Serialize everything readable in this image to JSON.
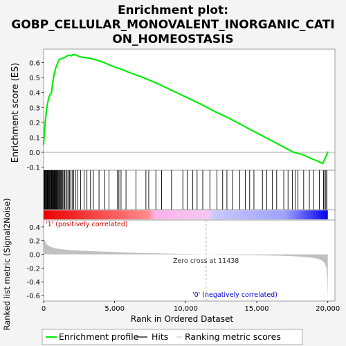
{
  "title": {
    "line1": "Enrichment plot:",
    "line2": "GOBP_CELLULAR_MONOVALENT_INORGANIC_CATI",
    "line3": "ON_HOMEOSTASIS"
  },
  "chart_data": [
    {
      "type": "line",
      "panel": "enrichment",
      "ylabel": "Enrichment score (ES)",
      "xlim": [
        0,
        20500
      ],
      "ylim": [
        -0.12,
        0.69
      ],
      "yticks": [
        "-0.1",
        "0.0",
        "0.1",
        "0.2",
        "0.3",
        "0.4",
        "0.5",
        "0.6"
      ],
      "grid": false,
      "series": [
        {
          "name": "Enrichment profile",
          "color": "#00ee00",
          "x": [
            0,
            60,
            120,
            200,
            280,
            380,
            480,
            560,
            620,
            680,
            760,
            840,
            920,
            1000,
            1100,
            1200,
            1350,
            1500,
            1650,
            1800,
            1950,
            2100,
            2300,
            2500,
            2800,
            3200,
            3600,
            4000,
            4500,
            5000,
            5500,
            6000,
            7000,
            8000,
            9000,
            10000,
            11000,
            12000,
            13000,
            14000,
            15000,
            16000,
            17000,
            17600,
            18200,
            18800,
            19300,
            19650,
            19760,
            19860,
            19950,
            20000
          ],
          "y": [
            0.05,
            0.14,
            0.21,
            0.28,
            0.33,
            0.37,
            0.39,
            0.4,
            0.45,
            0.49,
            0.53,
            0.56,
            0.58,
            0.6,
            0.62,
            0.625,
            0.63,
            0.635,
            0.645,
            0.65,
            0.645,
            0.655,
            0.65,
            0.64,
            0.635,
            0.63,
            0.62,
            0.61,
            0.59,
            0.57,
            0.555,
            0.535,
            0.5,
            0.46,
            0.415,
            0.37,
            0.325,
            0.275,
            0.23,
            0.18,
            0.13,
            0.08,
            0.03,
            0.0,
            -0.015,
            -0.04,
            -0.06,
            -0.075,
            -0.05,
            -0.03,
            -0.01,
            0.005
          ]
        }
      ]
    },
    {
      "type": "hits",
      "panel": "hits",
      "xlim": [
        0,
        20500
      ],
      "hit_positions": [
        20,
        60,
        90,
        130,
        170,
        210,
        250,
        290,
        330,
        370,
        410,
        450,
        500,
        540,
        580,
        620,
        660,
        700,
        740,
        780,
        820,
        860,
        900,
        940,
        980,
        1030,
        1080,
        1130,
        1180,
        1230,
        1290,
        1350,
        1420,
        1490,
        1570,
        1650,
        1730,
        1820,
        1910,
        2010,
        2120,
        2250,
        2400,
        2600,
        2850,
        3050,
        3300,
        3500,
        3900,
        4300,
        4600,
        5200,
        5300,
        5450,
        5800,
        6500,
        7200,
        7400,
        7900,
        8300,
        9000,
        9800,
        10100,
        10500,
        10800,
        11200,
        11700,
        12200,
        12600,
        12900,
        13300,
        13800,
        14200,
        14500,
        14800,
        15400,
        15700,
        16100,
        16400,
        16900,
        17200,
        17500,
        17700,
        17900,
        18300,
        18700,
        19000,
        19400,
        19700,
        19790,
        19860,
        19930
      ]
    },
    {
      "type": "area",
      "panel": "ranked_metric",
      "ylabel": "Ranked list metric (Signal2Noise)",
      "xlabel": "Rank in Ordered Dataset",
      "xlim": [
        0,
        20500
      ],
      "ylim": [
        -0.68,
        0.5
      ],
      "yticks": [
        "0.4",
        "0.2",
        "0.0",
        "-0.2",
        "-0.4",
        "-0.6"
      ],
      "xticks": [
        "0",
        "5,000",
        "10,000",
        "15,000",
        "20,000"
      ],
      "x": [
        0,
        50,
        150,
        300,
        500,
        800,
        1200,
        1800,
        2500,
        3500,
        5000,
        7000,
        9000,
        11438,
        13000,
        15000,
        17000,
        18000,
        18800,
        19300,
        19600,
        19800,
        19900,
        19960,
        20000
      ],
      "y": [
        0.3,
        0.22,
        0.17,
        0.13,
        0.11,
        0.09,
        0.075,
        0.063,
        0.055,
        0.045,
        0.035,
        0.02,
        0.01,
        0.0,
        -0.005,
        -0.012,
        -0.022,
        -0.032,
        -0.045,
        -0.065,
        -0.09,
        -0.13,
        -0.2,
        -0.38,
        -0.65
      ],
      "zero_cross_label": "Zero cross at 11438",
      "zero_cross": 11438,
      "pos_label": "'1' (positively correlated)",
      "neg_label": "'0' (negatively correlated)"
    }
  ],
  "legend": {
    "items": [
      {
        "label": "Enrichment profile",
        "color": "#00ee00"
      },
      {
        "label": "Hits",
        "color": "#000000"
      },
      {
        "label": "Ranking metric scores",
        "color": "#c8c8c8"
      }
    ]
  },
  "colors": {
    "positive": "#ee0000",
    "negative": "#0000ee",
    "metric_fill": "#c0c0c0",
    "es_line": "#00ee00"
  }
}
